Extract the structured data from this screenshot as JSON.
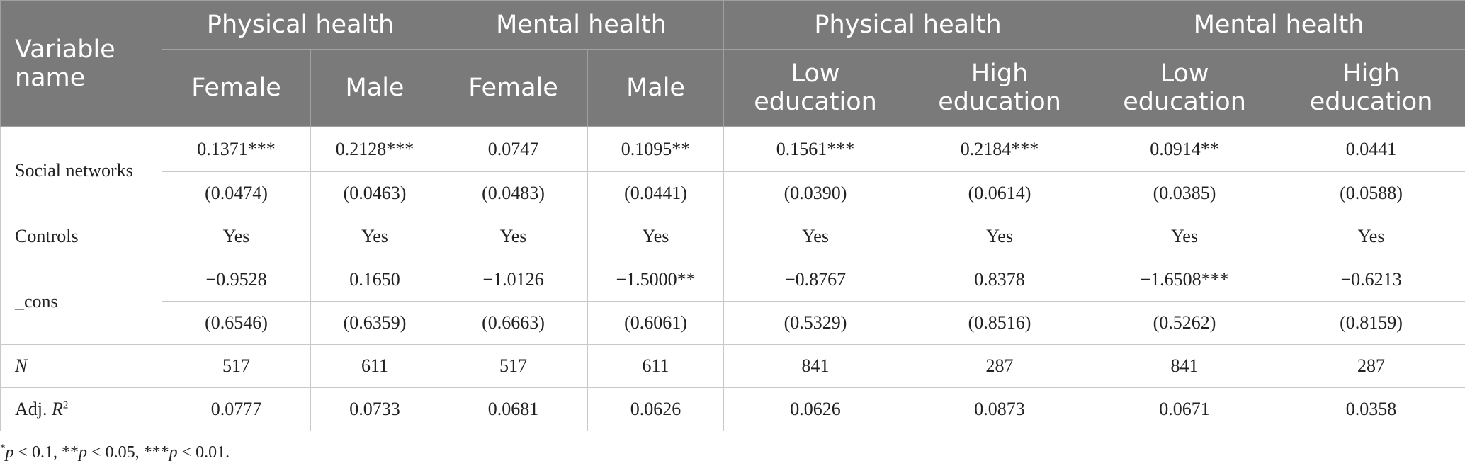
{
  "header": {
    "variable_name": "Variable name",
    "groups": [
      "Physical health",
      "Mental health",
      "Physical health",
      "Mental health"
    ],
    "subheaders": [
      "Female",
      "Male",
      "Female",
      "Male",
      "Low education",
      "High education",
      "Low education",
      "High education"
    ]
  },
  "rows": {
    "social_networks": {
      "label": "Social networks",
      "coef": [
        "0.1371***",
        "0.2128***",
        "0.0747",
        "0.1095**",
        "0.1561***",
        "0.2184***",
        "0.0914**",
        "0.0441"
      ],
      "se": [
        "(0.0474)",
        "(0.0463)",
        "(0.0483)",
        "(0.0441)",
        "(0.0390)",
        "(0.0614)",
        "(0.0385)",
        "(0.0588)"
      ]
    },
    "controls": {
      "label": "Controls",
      "values": [
        "Yes",
        "Yes",
        "Yes",
        "Yes",
        "Yes",
        "Yes",
        "Yes",
        "Yes"
      ]
    },
    "cons": {
      "label": "_cons",
      "coef": [
        "−0.9528",
        "0.1650",
        "−1.0126",
        "−1.5000**",
        "−0.8767",
        "0.8378",
        "−1.6508***",
        "−0.6213"
      ],
      "se": [
        "(0.6546)",
        "(0.6359)",
        "(0.6663)",
        "(0.6061)",
        "(0.5329)",
        "(0.8516)",
        "(0.5262)",
        "(0.8159)"
      ]
    },
    "n": {
      "label": "N",
      "values": [
        "517",
        "611",
        "517",
        "611",
        "841",
        "287",
        "841",
        "287"
      ]
    },
    "adj_r2": {
      "label_prefix": "Adj. ",
      "label_var": "R",
      "label_sup": "2",
      "values": [
        "0.0777",
        "0.0733",
        "0.0681",
        "0.0626",
        "0.0626",
        "0.0873",
        "0.0671",
        "0.0358"
      ]
    }
  },
  "note": {
    "p1_star": "*",
    "p1_var": "p",
    "p1_text": " < 0.1, **",
    "p2_var": "p",
    "p2_text": " < 0.05, ***",
    "p3_var": "p",
    "p3_text": " < 0.01."
  }
}
